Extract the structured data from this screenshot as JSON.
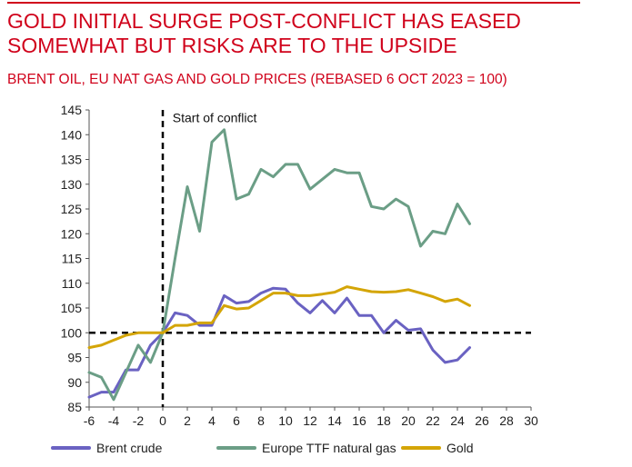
{
  "title": "GOLD INITIAL SURGE POST-CONFLICT HAS EASED SOMEWHAT BUT RISKS ARE TO THE UPSIDE",
  "subtitle": "BRENT OIL, EU NAT GAS AND GOLD PRICES (REBASED 6 OCT 2023 = 100)",
  "colors": {
    "accent": "#d0021b",
    "brent": "#6a62c2",
    "ttf": "#6b9e86",
    "gold": "#d4a507"
  },
  "chart_data": {
    "type": "line",
    "title": "GOLD INITIAL SURGE POST-CONFLICT HAS EASED SOMEWHAT BUT RISKS ARE TO THE UPSIDE",
    "subtitle": "BRENT OIL, EU NAT GAS AND GOLD PRICES (REBASED 6 OCT 2023 = 100)",
    "xlabel": "",
    "ylabel": "",
    "xlim": [
      -6,
      30
    ],
    "ylim": [
      85,
      145
    ],
    "xticks": [
      -6,
      -4,
      -2,
      0,
      2,
      4,
      6,
      8,
      10,
      12,
      14,
      16,
      18,
      20,
      22,
      24,
      26,
      28,
      30
    ],
    "yticks": [
      85,
      90,
      95,
      100,
      105,
      110,
      115,
      120,
      125,
      130,
      135,
      140,
      145
    ],
    "grid": false,
    "legend_position": "bottom",
    "reference_lines": {
      "vertical_x": 0,
      "horizontal_y": 100,
      "style": "dashed"
    },
    "annotations": [
      {
        "text": "Start of conflict",
        "x": 0.8,
        "y": 142.5
      }
    ],
    "series": [
      {
        "name": "Brent crude",
        "color": "#6a62c2",
        "x": [
          -6,
          -5,
          -4,
          -3,
          -2,
          -1,
          0,
          1,
          2,
          3,
          4,
          5,
          6,
          7,
          8,
          9,
          10,
          11,
          12,
          13,
          14,
          15,
          16,
          17,
          18,
          19,
          20,
          21,
          22,
          23,
          24,
          25
        ],
        "values": [
          87,
          88,
          88,
          92.5,
          92.5,
          97.5,
          100,
          104,
          103.5,
          101.5,
          101.5,
          107.5,
          106,
          106.3,
          108,
          109,
          108.8,
          106,
          104,
          106.5,
          104,
          107,
          103.5,
          103.5,
          100,
          102.5,
          100.5,
          100.8,
          96.5,
          94,
          94.5,
          97
        ]
      },
      {
        "name": "Europe TTF natural gas",
        "color": "#6b9e86",
        "x": [
          -6,
          -5,
          -4,
          -3,
          -2,
          -1,
          0,
          1,
          2,
          3,
          4,
          5,
          6,
          7,
          8,
          9,
          10,
          11,
          12,
          13,
          14,
          15,
          16,
          17,
          18,
          19,
          20,
          21,
          22,
          23,
          24,
          25
        ],
        "values": [
          92,
          91,
          86.5,
          92,
          97.5,
          94,
          100,
          115,
          129.5,
          120.5,
          138.5,
          141,
          127,
          128,
          133,
          131.5,
          134,
          134,
          129,
          131,
          133,
          132.3,
          132.3,
          125.5,
          125,
          127,
          125.5,
          117.5,
          120.5,
          120,
          126,
          122
        ]
      },
      {
        "name": "Gold",
        "color": "#d4a507",
        "x": [
          -6,
          -5,
          -4,
          -3,
          -2,
          -1,
          0,
          1,
          2,
          3,
          4,
          5,
          6,
          7,
          8,
          9,
          10,
          11,
          12,
          13,
          14,
          15,
          16,
          17,
          18,
          19,
          20,
          21,
          22,
          23,
          24,
          25
        ],
        "values": [
          97,
          97.5,
          98.5,
          99.5,
          100,
          100,
          100,
          101.5,
          101.5,
          102,
          102,
          105.5,
          104.8,
          105,
          106.5,
          108,
          108,
          107.5,
          107.5,
          107.8,
          108.2,
          109.3,
          108.8,
          108.3,
          108.2,
          108.3,
          108.7,
          108,
          107.3,
          106.3,
          106.8,
          105.5
        ]
      }
    ]
  }
}
